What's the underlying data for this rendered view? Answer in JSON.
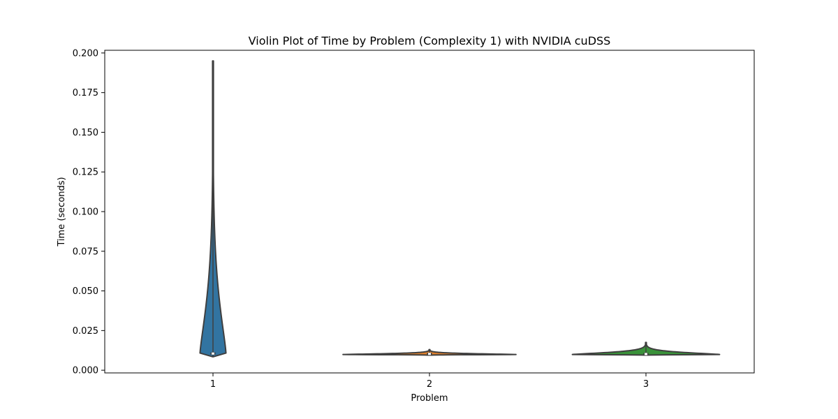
{
  "chart_data": {
    "type": "violin",
    "title": "Violin Plot of Time by Problem (Complexity 1) with NVIDIA cuDSS",
    "xlabel": "Problem",
    "ylabel": "Time (seconds)",
    "categories": [
      "1",
      "2",
      "3"
    ],
    "ylim": [
      -0.0017,
      0.2017
    ],
    "yticks": [
      0.0,
      0.025,
      0.05,
      0.075,
      0.1,
      0.125,
      0.15,
      0.175,
      0.2
    ],
    "ytick_labels": [
      "0.000",
      "0.025",
      "0.050",
      "0.075",
      "0.100",
      "0.125",
      "0.150",
      "0.175",
      "0.200"
    ],
    "grid": false,
    "legend": "none",
    "violins": [
      {
        "category": "1",
        "min": 0.0085,
        "max": 0.195,
        "q1": 0.0102,
        "median": 0.0105,
        "q3": 0.0108,
        "mode": 0.0105,
        "relative_width": 0.12,
        "fill": "#3274a1"
      },
      {
        "category": "2",
        "min": 0.0095,
        "max": 0.013,
        "q1": 0.0101,
        "median": 0.0103,
        "q3": 0.0106,
        "mode": 0.0099,
        "relative_width": 0.8,
        "fill": "#e1812c"
      },
      {
        "category": "3",
        "min": 0.0095,
        "max": 0.0175,
        "q1": 0.01,
        "median": 0.0102,
        "q3": 0.0105,
        "mode": 0.0099,
        "relative_width": 0.68,
        "fill": "#3a923a"
      }
    ]
  },
  "colors": {
    "outline": "#3f3f3f",
    "axes": "#000000",
    "box": "#3f3f3f",
    "median": "#ffffff"
  }
}
